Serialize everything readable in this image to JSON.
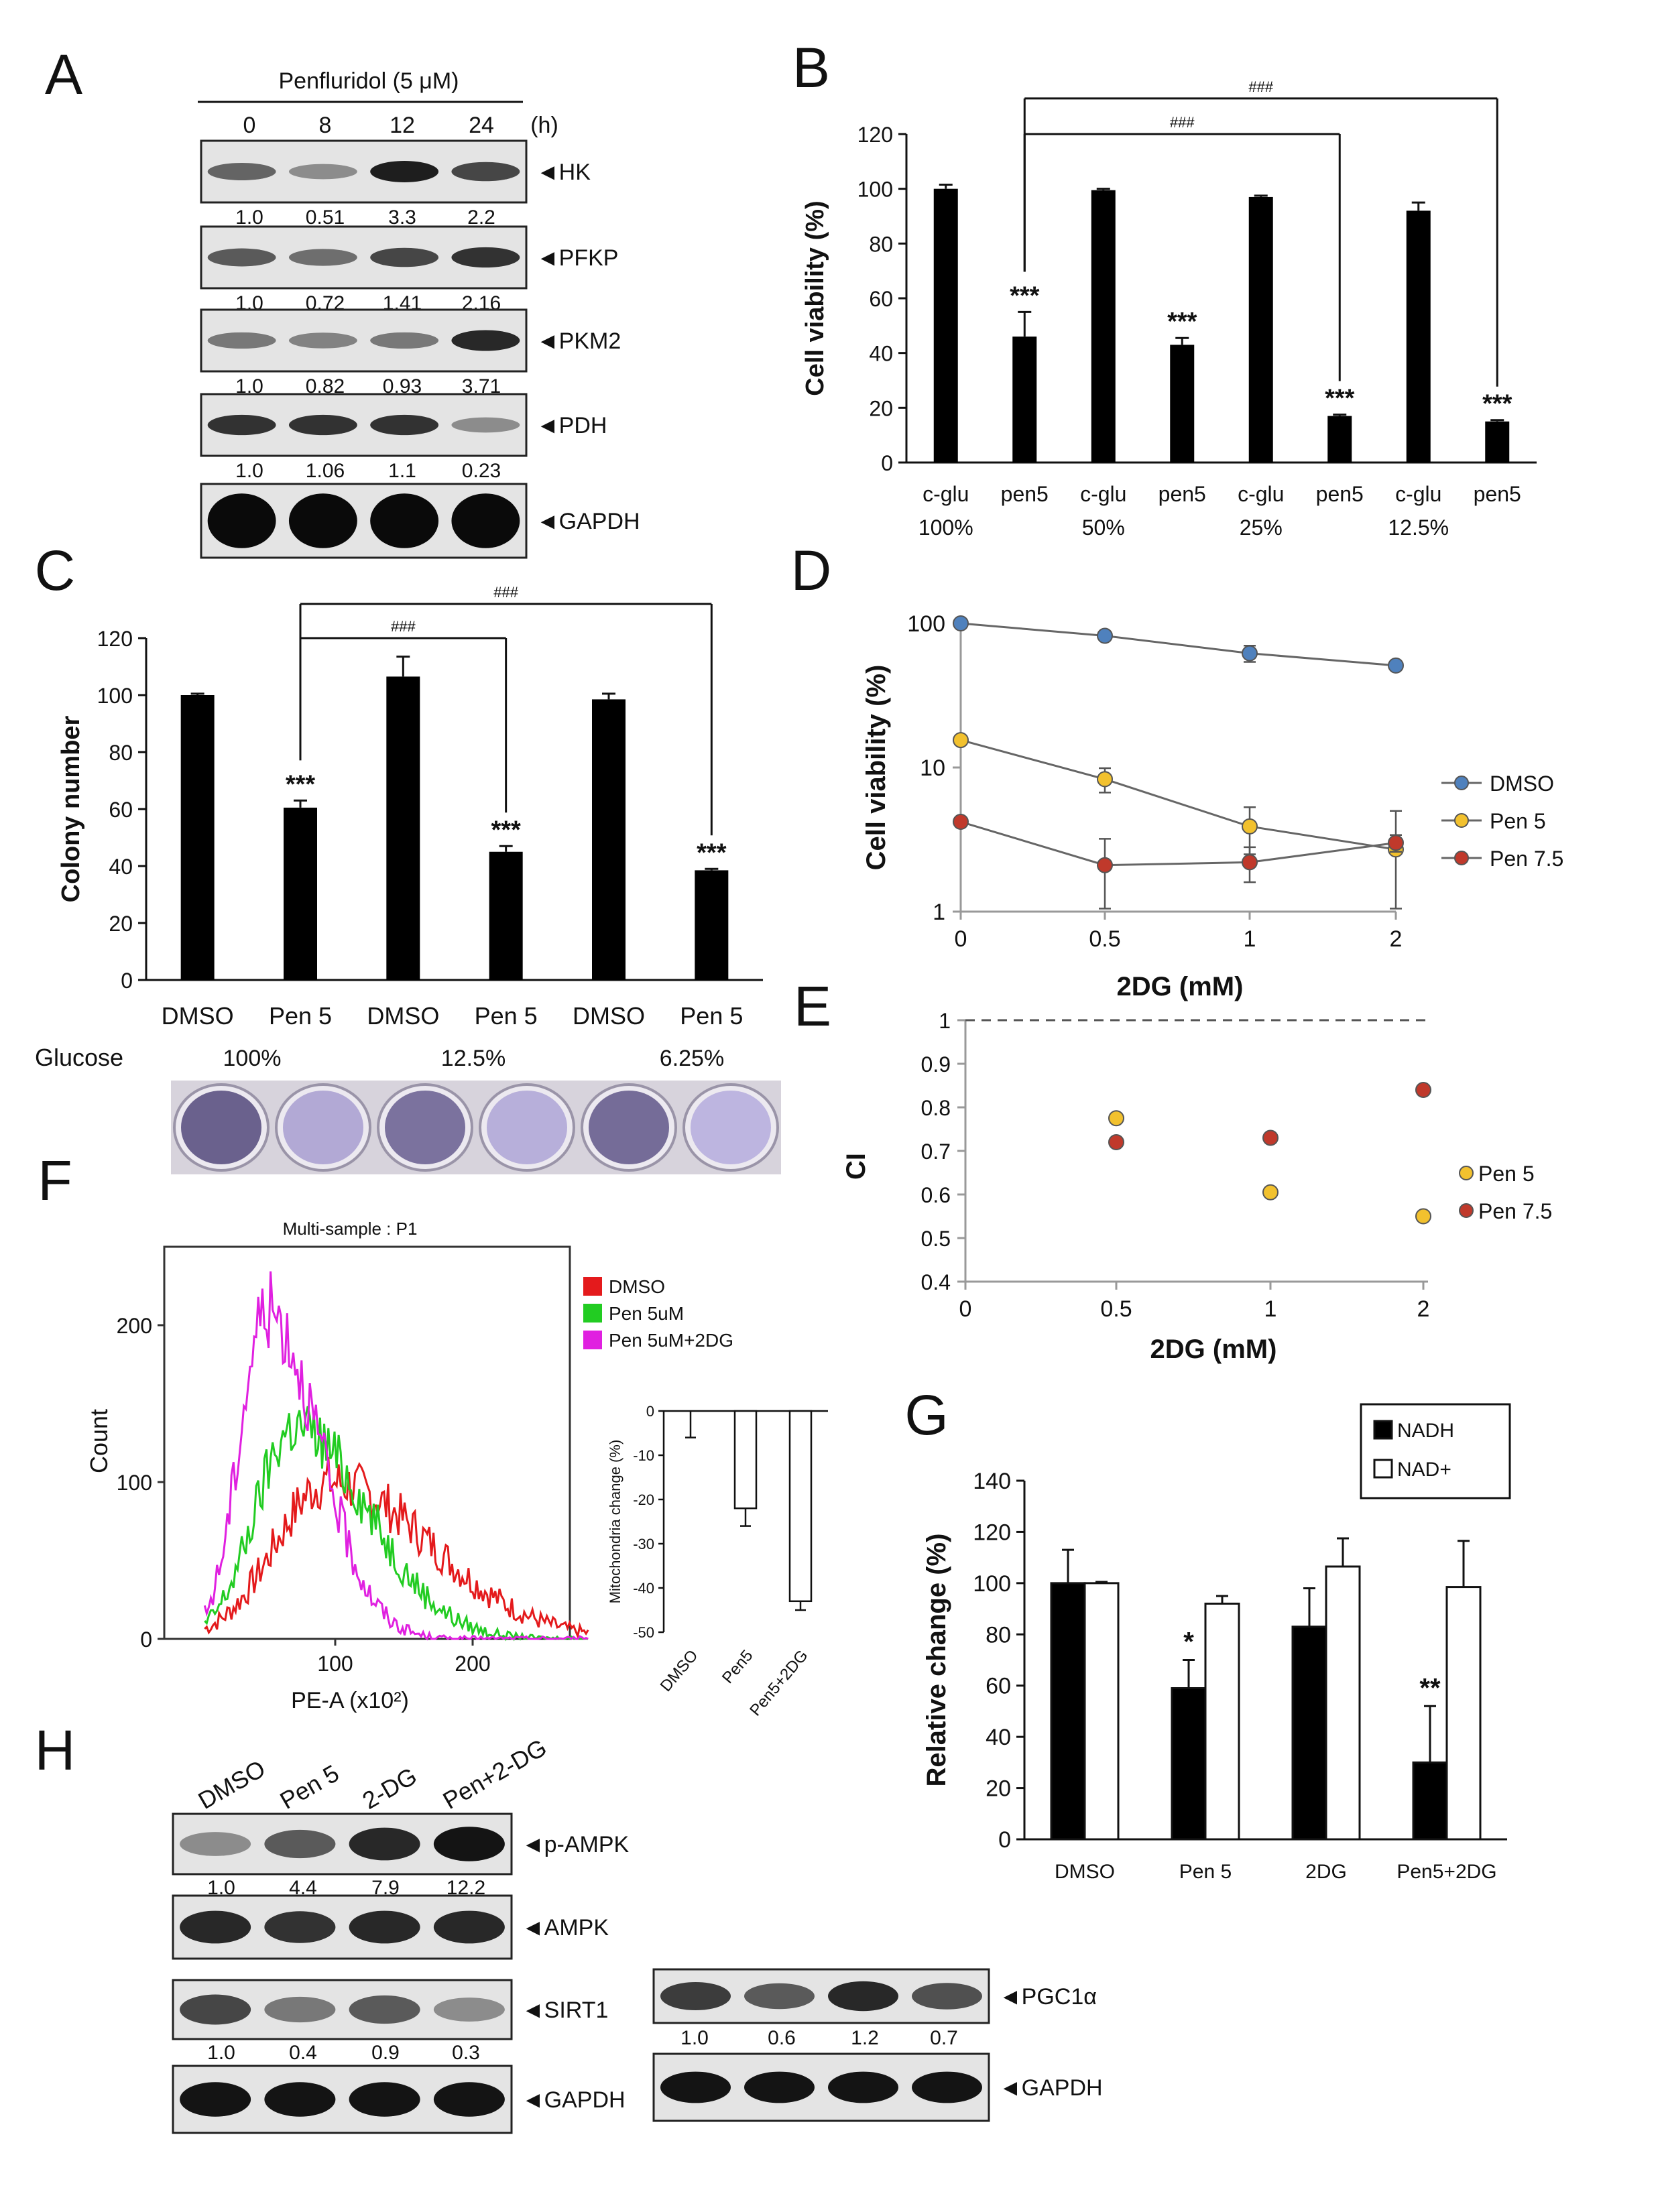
{
  "panels": {
    "A": {
      "letter": "A",
      "treatment": "Penfluridol (5 μM)",
      "timepoints": [
        "0",
        "8",
        "12",
        "24"
      ],
      "time_unit": "(h)",
      "proteins": [
        {
          "label": "◄HK",
          "values": [
            "1.0",
            "0.51",
            "3.3",
            "2.2"
          ],
          "band_strength": [
            0.55,
            0.35,
            0.9,
            0.7
          ]
        },
        {
          "label": "◄PFKP",
          "values": [
            "1.0",
            "0.72",
            "1.41",
            "2.16"
          ],
          "band_strength": [
            0.6,
            0.5,
            0.7,
            0.8
          ]
        },
        {
          "label": "◄PKM2",
          "values": [
            "1.0",
            "0.82",
            "0.93",
            "3.71"
          ],
          "band_strength": [
            0.45,
            0.4,
            0.45,
            0.85
          ]
        },
        {
          "label": "◄PDH",
          "values": [
            "1.0",
            "1.06",
            "1.1",
            "0.23"
          ],
          "band_strength": [
            0.8,
            0.8,
            0.8,
            0.35
          ]
        },
        {
          "label": "◄GAPDH",
          "values": [],
          "band_strength": [
            1,
            1,
            1,
            1
          ]
        }
      ]
    },
    "B": {
      "letter": "B"
    },
    "C": {
      "letter": "C",
      "glucose_label": "Glucose",
      "glucose_levels": [
        "100%",
        "12.5%",
        "6.25%"
      ],
      "colony_density": [
        0.9,
        0.25,
        0.75,
        0.2,
        0.8,
        0.15
      ]
    },
    "D": {
      "letter": "D"
    },
    "E": {
      "letter": "E"
    },
    "F": {
      "letter": "F",
      "title": "Multi-sample : P1",
      "ylabel": "Count",
      "xlabel": "PE-A (x10²)",
      "yticks": [
        "0",
        "100",
        "200"
      ],
      "xticks": [
        "100",
        "200"
      ],
      "legend": [
        {
          "label": "DMSO",
          "color": "#e41a1c"
        },
        {
          "label": "Pen 5uM",
          "color": "#22cc22"
        },
        {
          "label": "Pen 5uM+2DG",
          "color": "#e020e0"
        }
      ],
      "histogram_peaks": [
        {
          "peak_x": 95,
          "peak_count": 100,
          "width": 55
        },
        {
          "peak_x": 70,
          "peak_count": 135,
          "width": 40
        },
        {
          "peak_x": 50,
          "peak_count": 210,
          "width": 28
        }
      ],
      "inset": {
        "ylabel": "Mitochondria change (%)",
        "yticks": [
          "0",
          "-10",
          "-20",
          "-30",
          "-40",
          "-50"
        ],
        "categories": [
          "DMSO",
          "Pen5",
          "Pen5+2DG"
        ],
        "values": [
          0,
          -22,
          -43
        ],
        "errors": [
          6,
          4,
          2
        ]
      }
    },
    "G": {
      "letter": "G"
    },
    "H": {
      "letter": "H",
      "lanes": [
        "DMSO",
        "Pen 5",
        "2-DG",
        "Pen+2-DG"
      ],
      "left_blots": [
        {
          "label": "◄p-AMPK",
          "values": [
            "1.0",
            "4.4",
            "7.9",
            "12.2"
          ],
          "band_strength": [
            0.35,
            0.6,
            0.85,
            0.95
          ]
        },
        {
          "label": "◄AMPK",
          "values": [],
          "band_strength": [
            0.85,
            0.8,
            0.85,
            0.85
          ]
        },
        {
          "label": "◄SIRT1",
          "values": [
            "1.0",
            "0.4",
            "0.9",
            "0.3"
          ],
          "band_strength": [
            0.7,
            0.45,
            0.6,
            0.35
          ]
        },
        {
          "label": "◄GAPDH",
          "values": [],
          "band_strength": [
            0.95,
            0.95,
            0.95,
            0.95
          ]
        }
      ],
      "right_blots": [
        {
          "label": "◄PGC1α",
          "values": [
            "1.0",
            "0.6",
            "1.2",
            "0.7"
          ],
          "band_strength": [
            0.75,
            0.6,
            0.85,
            0.65
          ]
        },
        {
          "label": "◄GAPDH",
          "values": [],
          "band_strength": [
            0.95,
            0.95,
            0.95,
            0.95
          ]
        }
      ]
    }
  },
  "chart_data": [
    {
      "panel": "B",
      "type": "bar",
      "ylabel": "Cell viability (%)",
      "ylim": [
        0,
        120
      ],
      "yticks": [
        0,
        20,
        40,
        60,
        80,
        100,
        120
      ],
      "categories": [
        "c-glu 100%",
        "pen5",
        "c-glu 50%",
        "pen5",
        "c-glu 25%",
        "pen5",
        "c-glu 12.5%",
        "pen5"
      ],
      "tick_line1": [
        "c-glu",
        "pen5",
        "c-glu",
        "pen5",
        "c-glu",
        "pen5",
        "c-glu",
        "pen5"
      ],
      "tick_line2": [
        "100%",
        "",
        "50%",
        "",
        "25%",
        "",
        "12.5%",
        ""
      ],
      "values": [
        100,
        46,
        99.5,
        43,
        97,
        17,
        92,
        15
      ],
      "errors": [
        1.5,
        9,
        0.5,
        2.5,
        0.5,
        0.5,
        3,
        0.5
      ],
      "stars": [
        "",
        "***",
        "",
        "***",
        "",
        "***",
        "",
        "***"
      ],
      "brackets": [
        {
          "from": 1,
          "to": 5,
          "label": "###",
          "y": 120
        },
        {
          "from": 1,
          "to": 7,
          "label": "###",
          "y": 133
        }
      ]
    },
    {
      "panel": "C",
      "type": "bar",
      "ylabel": "Colony number",
      "ylim": [
        0,
        120
      ],
      "yticks": [
        0,
        20,
        40,
        60,
        80,
        100,
        120
      ],
      "categories": [
        "DMSO",
        "Pen 5",
        "DMSO",
        "Pen 5",
        "DMSO",
        "Pen 5"
      ],
      "values": [
        100,
        60.5,
        106.5,
        45,
        98.5,
        38.5
      ],
      "errors": [
        0.5,
        2.5,
        7,
        2,
        2,
        0.5
      ],
      "stars": [
        "",
        "***",
        "",
        "***",
        "",
        "***"
      ],
      "brackets": [
        {
          "from": 1,
          "to": 3,
          "label": "###",
          "y": 120
        },
        {
          "from": 1,
          "to": 5,
          "label": "###",
          "y": 132
        }
      ]
    },
    {
      "panel": "D",
      "type": "line",
      "yscale": "log",
      "ylabel": "Cell viability (%)",
      "xlabel": "2DG (mM)",
      "x": [
        0,
        0.5,
        1,
        2
      ],
      "xticks": [
        "0",
        "0.5",
        "1",
        "2"
      ],
      "yticks": [
        "1",
        "10",
        "100"
      ],
      "series": [
        {
          "name": "DMSO",
          "color": "#4f81bd",
          "values": [
            100,
            82,
            62,
            51
          ],
          "errors": [
            4,
            6,
            8,
            3
          ]
        },
        {
          "name": "Pen 5",
          "color": "#f2c12e",
          "values": [
            15.5,
            8.3,
            3.9,
            2.7
          ],
          "errors": [
            1,
            1.6,
            1.4,
            2.3
          ]
        },
        {
          "name": "Pen 7.5",
          "color": "#c0392b",
          "values": [
            4.2,
            2.1,
            2.2,
            3.0
          ],
          "errors": [
            0.3,
            1.1,
            0.6,
            0.4
          ]
        }
      ]
    },
    {
      "panel": "E",
      "type": "scatter",
      "ylabel": "CI",
      "xlabel": "2DG (mM)",
      "ylim": [
        0.4,
        1.0
      ],
      "yticks": [
        "0.4",
        "0.5",
        "0.6",
        "0.7",
        "0.8",
        "0.9",
        "1"
      ],
      "xticks": [
        "0",
        "0.5",
        "1",
        "2"
      ],
      "x": [
        0,
        0.5,
        1,
        2
      ],
      "reference_line": 1,
      "series": [
        {
          "name": "Pen 5",
          "color": "#f2c12e",
          "x": [
            0.5,
            1,
            2
          ],
          "values": [
            0.775,
            0.605,
            0.55
          ]
        },
        {
          "name": "Pen 7.5",
          "color": "#c0392b",
          "x": [
            0.5,
            1,
            2
          ],
          "values": [
            0.72,
            0.73,
            0.84
          ]
        }
      ]
    },
    {
      "panel": "G",
      "type": "bar",
      "ylabel": "Relative change (%)",
      "ylim": [
        0,
        140
      ],
      "yticks": [
        0,
        20,
        40,
        60,
        80,
        100,
        120,
        140
      ],
      "categories": [
        "DMSO",
        "Pen 5",
        "2DG",
        "Pen5+2DG"
      ],
      "series": [
        {
          "name": "NADH",
          "color": "#000000",
          "values": [
            100,
            59,
            83,
            30
          ],
          "errors": [
            13,
            11,
            15,
            22
          ]
        },
        {
          "name": "NAD+",
          "color": "#ffffff",
          "values": [
            100,
            92,
            106.5,
            98.5
          ],
          "errors": [
            0.5,
            3,
            11,
            18
          ]
        }
      ],
      "stars": [
        "",
        "*",
        "",
        "**"
      ]
    }
  ]
}
